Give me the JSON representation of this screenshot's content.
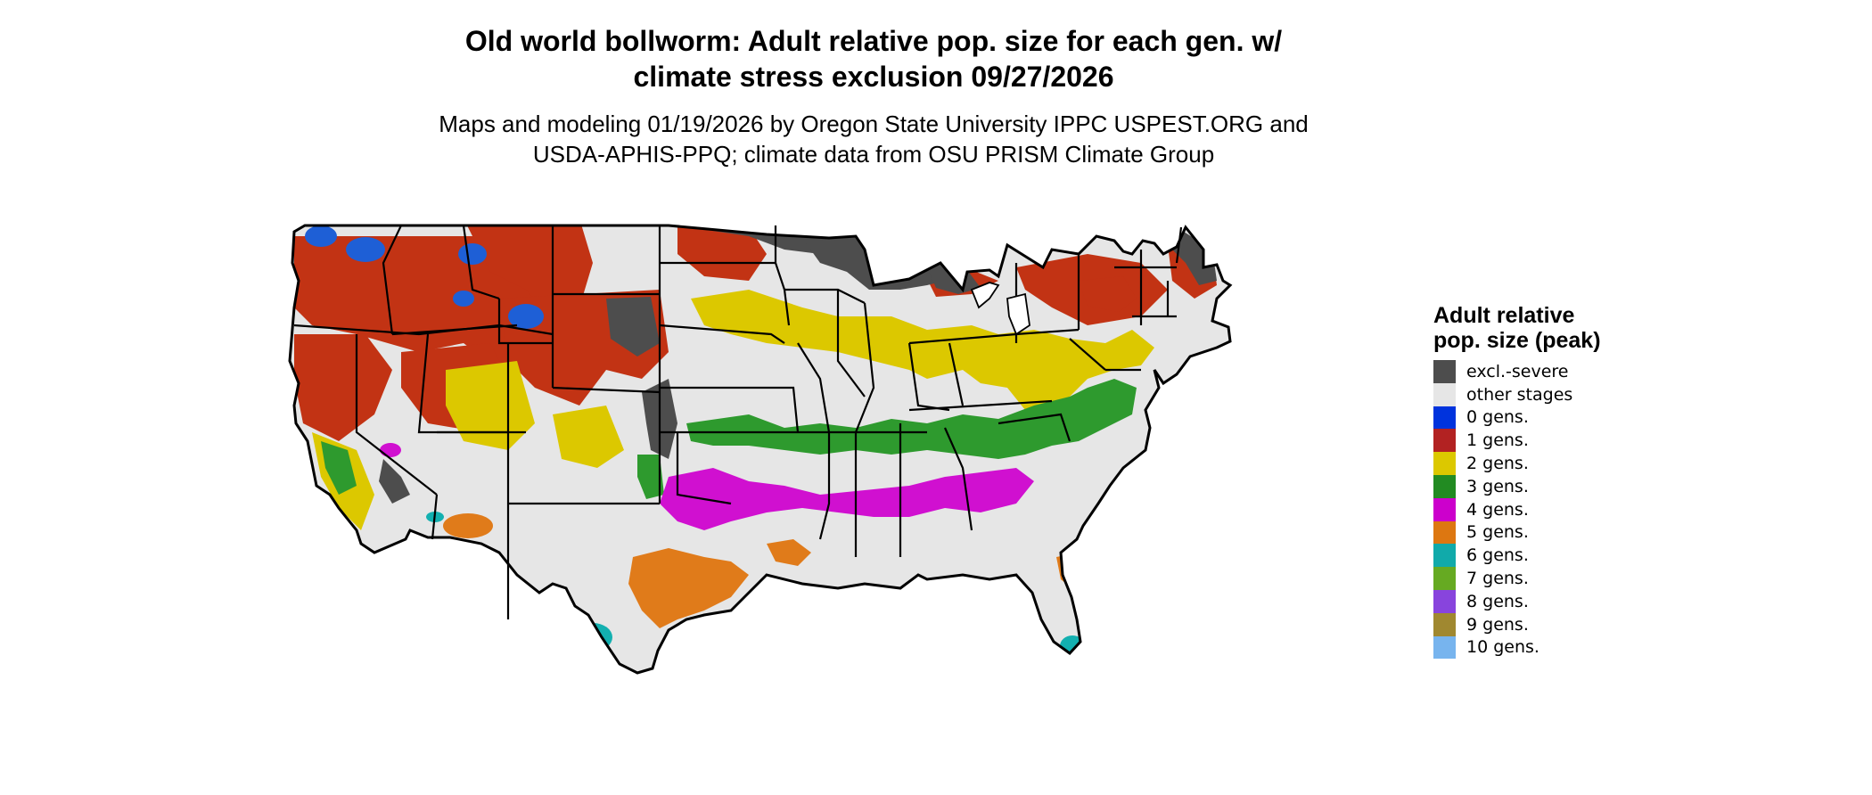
{
  "title_line1": "Old world bollworm: Adult relative pop. size for each gen. w/",
  "title_line2": "climate stress exclusion 09/27/2026",
  "subtitle_line1": "Maps and modeling 01/19/2026 by Oregon State University IPPC USPEST.ORG and",
  "subtitle_line2": "USDA-APHIS-PPQ; climate data from OSU PRISM Climate Group",
  "legend": {
    "title": "Adult relative pop. size (peak)",
    "items": [
      {
        "label": "excl.-severe",
        "color": "#4d4d4d"
      },
      {
        "label": "other stages",
        "color": "#e6e6e6"
      },
      {
        "label": "0 gens.",
        "color": "#0033dd"
      },
      {
        "label": "1 gens.",
        "color": "#b22222"
      },
      {
        "label": "2 gens.",
        "color": "#dcc800"
      },
      {
        "label": "3 gens.",
        "color": "#228b22"
      },
      {
        "label": "4 gens.",
        "color": "#cc00cc"
      },
      {
        "label": "5 gens.",
        "color": "#dd7711"
      },
      {
        "label": "6 gens.",
        "color": "#11aaaa"
      },
      {
        "label": "7 gens.",
        "color": "#66aa22"
      },
      {
        "label": "8 gens.",
        "color": "#8844dd"
      },
      {
        "label": "9 gens.",
        "color": "#a08830"
      },
      {
        "label": "10 gens.",
        "color": "#77b4ee"
      }
    ]
  }
}
